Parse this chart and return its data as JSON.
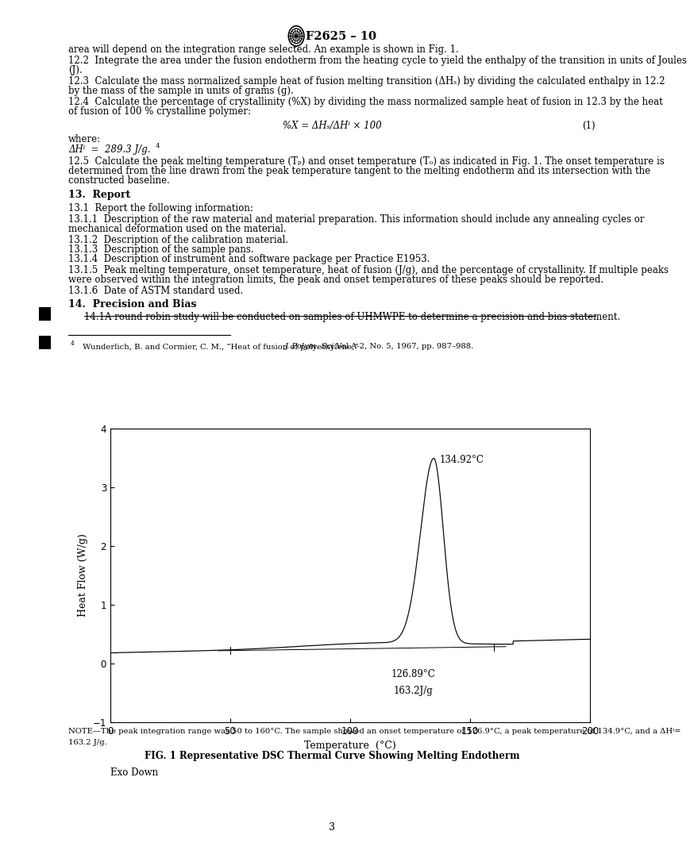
{
  "page_number": "3",
  "background_color": "#ffffff",
  "graph_xlim": [
    0,
    200
  ],
  "graph_ylim": [
    -1,
    4
  ],
  "graph_xticks": [
    0,
    50,
    100,
    150,
    200
  ],
  "graph_yticks": [
    -1,
    0,
    1,
    2,
    3,
    4
  ],
  "graph_xlabel": "Temperature  (°C)",
  "graph_ylabel": "Heat Flow (W/g)",
  "graph_exo_label": "Exo Down",
  "peak_label_text": "134.92°C",
  "onset_label_line1": "126.89°C",
  "onset_label_line2": "163.2J/g",
  "fig_caption": "FIG. 1 Representative DSC Thermal Curve Showing Melting Endotherm",
  "note_line1": "NOTE—The peak integration range was 50 to 160°C. The sample showed an onset temperature of 126.9°C, a peak temperature of 134.9°C, and a ΔHⁱ=",
  "note_line2": "163.2 J/g.",
  "lm": 0.093,
  "rm": 0.907,
  "fs_body": 8.5,
  "fs_small": 7.2,
  "fs_section": 9.0,
  "fs_header": 10.5
}
